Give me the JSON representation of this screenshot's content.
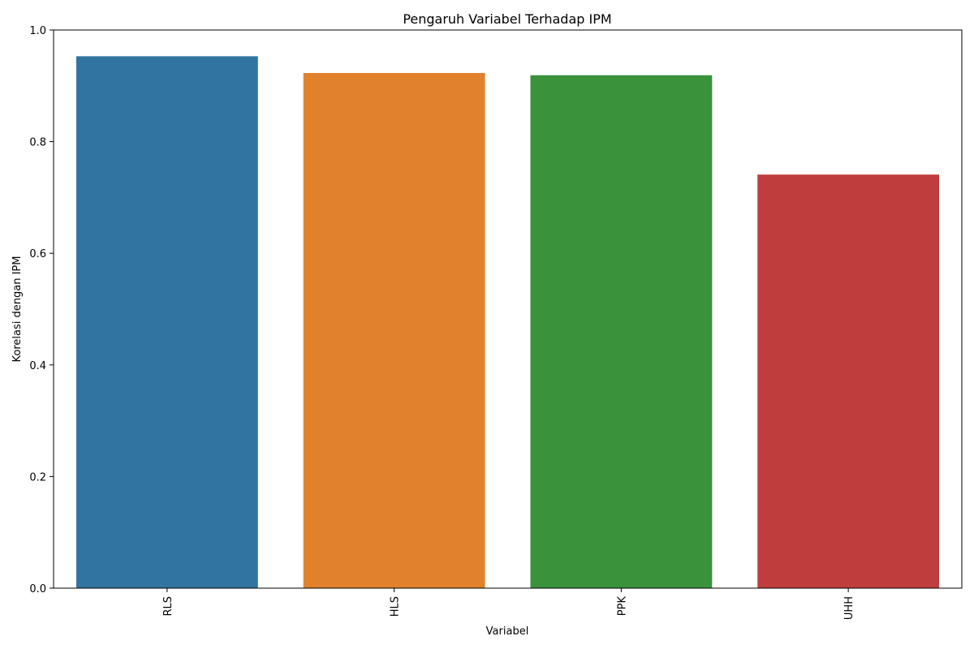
{
  "chart_data": {
    "type": "bar",
    "title": "Pengaruh Variabel Terhadap IPM",
    "xlabel": "Variabel",
    "ylabel": "Korelasi dengan IPM",
    "categories": [
      "RLS",
      "HLS",
      "PPK",
      "UHH"
    ],
    "values": [
      0.953,
      0.923,
      0.919,
      0.741
    ],
    "colors": [
      "#3274a1",
      "#e1812c",
      "#3a923a",
      "#c03d3e"
    ],
    "ylim": [
      0,
      1.0
    ],
    "yticks": [
      "0.0",
      "0.2",
      "0.4",
      "0.6",
      "0.8",
      "1.0"
    ],
    "grid": false,
    "legend": "none"
  }
}
